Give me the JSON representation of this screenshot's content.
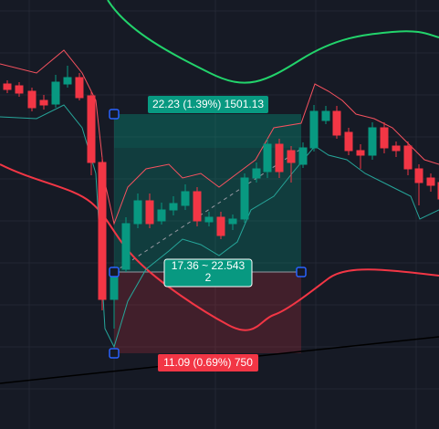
{
  "position_tool": {
    "target": "22.23 (1.39%) 1501.13",
    "entry": "17.36 ~ 22.543",
    "quantity": "2",
    "stop": "11.09 (0.69%) 750"
  }
}
